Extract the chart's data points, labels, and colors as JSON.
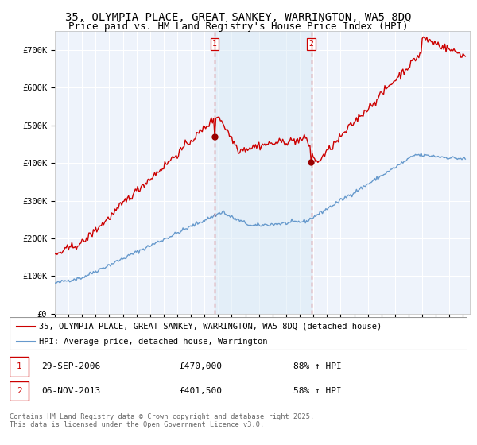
{
  "title": "35, OLYMPIA PLACE, GREAT SANKEY, WARRINGTON, WA5 8DQ",
  "subtitle": "Price paid vs. HM Land Registry's House Price Index (HPI)",
  "ylabel_ticks": [
    "£0",
    "£100K",
    "£200K",
    "£300K",
    "£400K",
    "£500K",
    "£600K",
    "£700K"
  ],
  "ytick_vals": [
    0,
    100000,
    200000,
    300000,
    400000,
    500000,
    600000,
    700000
  ],
  "ylim": [
    0,
    750000
  ],
  "xlim_start": 1995.0,
  "xlim_end": 2025.5,
  "vline1_x": 2006.75,
  "vline2_x": 2013.85,
  "shade_color": "#daeaf7",
  "vline_color": "#cc0000",
  "legend_label_red": "35, OLYMPIA PLACE, GREAT SANKEY, WARRINGTON, WA5 8DQ (detached house)",
  "legend_label_blue": "HPI: Average price, detached house, Warrington",
  "annotation1_label": "1",
  "annotation1_date": "29-SEP-2006",
  "annotation1_price": "£470,000",
  "annotation1_hpi": "88% ↑ HPI",
  "annotation2_label": "2",
  "annotation2_date": "06-NOV-2013",
  "annotation2_price": "£401,500",
  "annotation2_hpi": "58% ↑ HPI",
  "footer": "Contains HM Land Registry data © Crown copyright and database right 2025.\nThis data is licensed under the Open Government Licence v3.0.",
  "background_color": "#ffffff",
  "plot_bg_color": "#eef3fb",
  "grid_color": "#ffffff",
  "title_fontsize": 10,
  "subtitle_fontsize": 9,
  "tick_fontsize": 7.5,
  "red_line_color": "#cc0000",
  "blue_line_color": "#6699cc",
  "dot_color": "#990000"
}
